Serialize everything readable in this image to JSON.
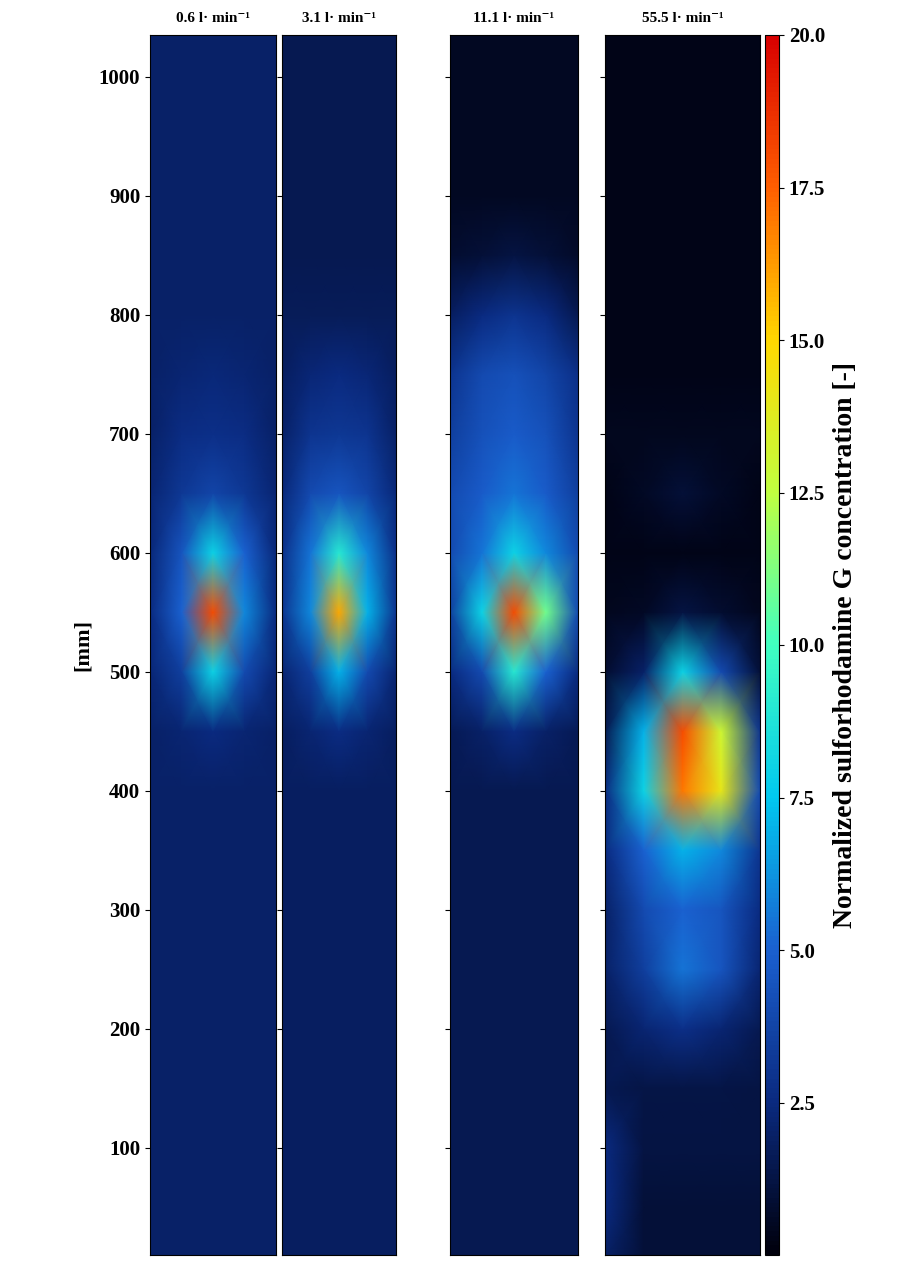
{
  "chart_data": {
    "type": "heatmap",
    "y_label": "[mm]",
    "ylim": [
      10,
      1035
    ],
    "yticks": [
      100,
      200,
      300,
      400,
      500,
      600,
      700,
      800,
      900,
      1000
    ],
    "tick_labels": "y",
    "y": [
      10,
      50,
      100,
      150,
      200,
      250,
      300,
      350,
      400,
      450,
      500,
      550,
      600,
      650,
      700,
      750,
      800,
      850,
      900,
      950,
      1000,
      1035
    ],
    "panels": [
      {
        "title": "0.6 l· min⁻¹",
        "cells": [
          [
            2,
            2,
            2,
            2,
            2
          ],
          [
            2,
            2,
            2,
            2,
            2
          ],
          [
            2,
            2,
            2,
            2,
            2
          ],
          [
            2,
            2,
            2,
            2,
            2
          ],
          [
            2,
            2,
            2,
            2,
            2
          ],
          [
            2,
            2,
            2,
            2,
            2
          ],
          [
            2,
            2,
            2,
            2,
            2
          ],
          [
            2,
            2,
            2,
            2,
            2
          ],
          [
            2,
            2,
            2,
            2,
            2
          ],
          [
            2,
            2.2,
            2.5,
            2.2,
            2
          ],
          [
            2.3,
            3.5,
            8,
            4,
            2.3
          ],
          [
            2.5,
            5,
            18,
            6,
            2.5
          ],
          [
            2.4,
            4.5,
            8,
            5,
            2.4
          ],
          [
            2.2,
            3.2,
            3.8,
            3.2,
            2.2
          ],
          [
            2,
            2.6,
            2.8,
            2.6,
            2
          ],
          [
            2,
            2.2,
            2.4,
            2.2,
            2
          ],
          [
            2,
            2,
            2,
            2,
            2
          ],
          [
            2,
            2,
            2,
            2,
            2
          ],
          [
            2,
            2,
            2,
            2,
            2
          ],
          [
            2,
            2,
            2,
            2,
            2
          ],
          [
            2,
            2,
            2,
            2,
            2
          ],
          [
            2,
            2,
            2,
            2,
            2
          ]
        ]
      },
      {
        "title": "3.1 l· min⁻¹",
        "cells": [
          [
            1.8,
            1.8,
            1.8,
            1.8,
            1.8
          ],
          [
            1.8,
            1.8,
            1.8,
            1.8,
            1.8
          ],
          [
            1.8,
            1.8,
            1.8,
            1.8,
            1.8
          ],
          [
            1.8,
            1.8,
            1.8,
            1.8,
            1.8
          ],
          [
            1.8,
            1.8,
            1.8,
            1.8,
            1.8
          ],
          [
            1.8,
            1.8,
            1.8,
            1.8,
            1.8
          ],
          [
            1.8,
            1.8,
            1.8,
            1.8,
            1.8
          ],
          [
            1.8,
            1.8,
            1.8,
            1.8,
            1.8
          ],
          [
            1.8,
            1.8,
            1.8,
            1.8,
            1.8
          ],
          [
            1.8,
            2.2,
            2.6,
            2.2,
            1.8
          ],
          [
            2.2,
            3.5,
            7,
            4,
            2.2
          ],
          [
            3,
            6,
            16,
            7,
            3
          ],
          [
            2.8,
            5.5,
            9,
            6,
            2.8
          ],
          [
            2.4,
            4,
            4.5,
            3.8,
            2.4
          ],
          [
            2,
            3,
            3.2,
            3,
            2
          ],
          [
            1.8,
            2.3,
            2.5,
            2.3,
            1.8
          ],
          [
            1.7,
            1.7,
            1.7,
            1.7,
            1.7
          ],
          [
            1.5,
            1.5,
            1.5,
            1.5,
            1.5
          ],
          [
            1.5,
            1.5,
            1.5,
            1.5,
            1.5
          ],
          [
            1.5,
            1.5,
            1.5,
            1.5,
            1.5
          ],
          [
            1.5,
            1.5,
            1.5,
            1.5,
            1.5
          ],
          [
            1.5,
            1.5,
            1.5,
            1.5,
            1.5
          ]
        ]
      },
      {
        "title": "11.1 l· min⁻¹",
        "cells": [
          [
            1.5,
            1.5,
            1.5,
            1.5,
            1.5
          ],
          [
            1.5,
            1.5,
            1.5,
            1.5,
            1.5
          ],
          [
            1.5,
            1.5,
            1.5,
            1.5,
            1.5
          ],
          [
            1.5,
            1.5,
            1.5,
            1.5,
            1.5
          ],
          [
            1.5,
            1.5,
            1.5,
            1.5,
            1.5
          ],
          [
            1.5,
            1.5,
            1.5,
            1.5,
            1.5
          ],
          [
            1.5,
            1.5,
            1.5,
            1.5,
            1.5
          ],
          [
            1.5,
            1.5,
            1.5,
            1.5,
            1.5
          ],
          [
            1.5,
            1.5,
            1.5,
            1.5,
            1.5
          ],
          [
            1.6,
            2,
            2.6,
            2,
            1.6
          ],
          [
            2.5,
            4,
            9,
            5,
            2.5
          ],
          [
            3.5,
            8,
            18,
            11,
            4
          ],
          [
            4,
            5.5,
            8,
            6,
            4
          ],
          [
            4,
            4.8,
            5.5,
            4.8,
            3.5
          ],
          [
            3.5,
            4.3,
            4.8,
            4.3,
            3
          ],
          [
            3,
            4,
            4.3,
            3.8,
            2.8
          ],
          [
            1.8,
            2.5,
            3,
            2.5,
            1.5
          ],
          [
            0.8,
            1,
            1.2,
            1,
            0.7
          ],
          [
            0.5,
            0.5,
            0.5,
            0.5,
            0.5
          ],
          [
            0.5,
            0.5,
            0.5,
            0.5,
            0.5
          ],
          [
            0.5,
            0.5,
            0.5,
            0.5,
            0.5
          ],
          [
            0.5,
            0.5,
            0.5,
            0.5,
            0.5
          ]
        ]
      },
      {
        "title": "55.5 l· min⁻¹",
        "cells": [
          [
            2,
            1,
            1,
            1,
            1
          ],
          [
            2.5,
            1,
            1,
            1,
            1
          ],
          [
            2.5,
            1.2,
            1.2,
            1.2,
            1.2
          ],
          [
            1.5,
            1.3,
            1.3,
            1.3,
            1.2
          ],
          [
            1.5,
            2.2,
            2.8,
            2.2,
            1.5
          ],
          [
            2,
            3.5,
            5.5,
            4.5,
            2.2
          ],
          [
            2,
            4,
            5,
            4.5,
            2.5
          ],
          [
            2.5,
            5,
            7,
            6,
            3
          ],
          [
            2.5,
            8,
            17,
            14,
            4
          ],
          [
            1.5,
            7,
            18,
            13,
            3
          ],
          [
            0.8,
            2,
            8,
            4,
            1
          ],
          [
            0.4,
            0.6,
            1.2,
            0.8,
            0.4
          ],
          [
            0.3,
            0.3,
            0.3,
            0.3,
            0.3
          ],
          [
            0.3,
            0.6,
            1,
            0.6,
            0.3
          ],
          [
            0.4,
            0.4,
            0.4,
            0.4,
            0.4
          ],
          [
            0.3,
            0.3,
            0.3,
            0.3,
            0.3
          ],
          [
            0.3,
            0.3,
            0.3,
            0.3,
            0.3
          ],
          [
            0.3,
            0.3,
            0.3,
            0.3,
            0.3
          ],
          [
            0.3,
            0.3,
            0.3,
            0.3,
            0.3
          ],
          [
            0.3,
            0.3,
            0.3,
            0.3,
            0.3
          ],
          [
            0.3,
            0.3,
            0.3,
            0.3,
            0.3
          ],
          [
            0.3,
            0.3,
            0.3,
            0.3,
            0.3
          ]
        ]
      }
    ],
    "colorbar": {
      "label": "Normalized sulforhodamine G concentration [-]",
      "range": [
        0,
        20
      ],
      "ticks": [
        2.5,
        {
          "value": 5,
          "label": "5.0"
        },
        7.5,
        {
          "value": 10,
          "label": "10.0"
        },
        12.5,
        {
          "value": 15,
          "label": "15.0"
        },
        17.5,
        {
          "value": 20,
          "label": "20.0"
        }
      ]
    }
  }
}
